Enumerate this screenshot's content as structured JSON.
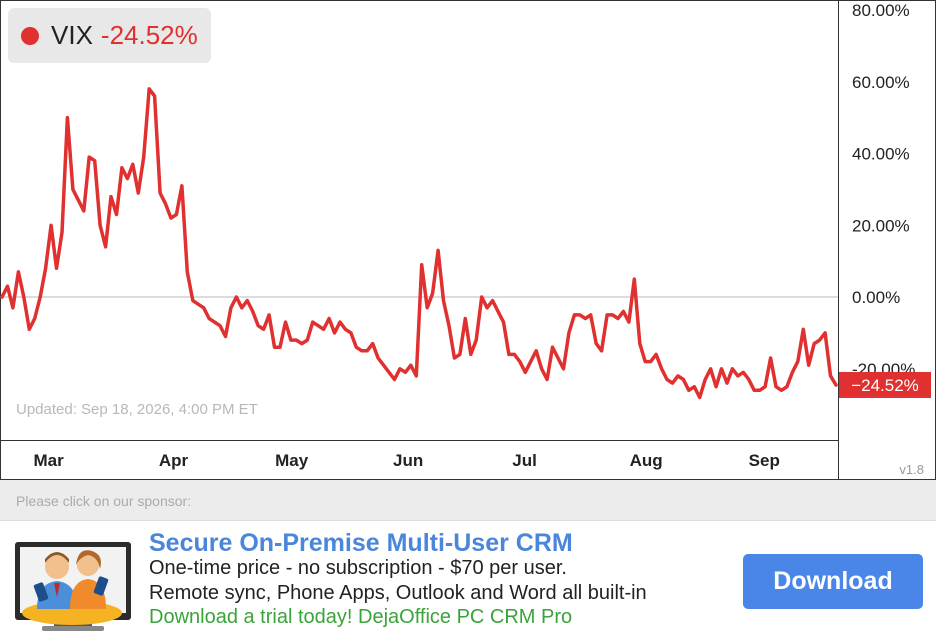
{
  "legend": {
    "symbol": "VIX",
    "change": "-24.52%",
    "color": "#e03030"
  },
  "updated": "Updated: Sep 18, 2026, 4:00 PM ET",
  "version": "v1.8",
  "last_value_label": "−24.52%",
  "sponsor": {
    "label": "Please click on our sponsor:",
    "title": "Secure On-Premise Multi-User CRM",
    "line1": "One-time price - no subscription - $70 per user.",
    "line2": "Remote sync, Phone Apps, Outlook and Word all built-in",
    "line3": "Download a trial today! DejaOffice PC CRM Pro",
    "button": "Download",
    "image_icon": "crm-people-phones-icon"
  },
  "chart_data": {
    "type": "line",
    "series": [
      {
        "name": "VIX",
        "color": "#e03030",
        "values": [
          0,
          3,
          -3,
          7,
          0,
          -9,
          -6,
          0,
          8,
          20,
          8,
          18,
          50,
          30,
          27,
          24,
          39,
          38,
          20,
          14,
          28,
          23,
          36,
          33,
          37,
          29,
          39,
          58,
          56,
          29,
          26,
          22,
          23,
          31,
          7,
          -1,
          -2,
          -3,
          -6,
          -7,
          -8,
          -11,
          -3,
          0,
          -3,
          -1,
          -4,
          -8,
          -9,
          -5,
          -14,
          -14,
          -7,
          -12,
          -12,
          -13,
          -12,
          -7,
          -8,
          -9,
          -6,
          -10,
          -7,
          -9,
          -10,
          -14,
          -15,
          -15,
          -13,
          -17,
          -19,
          -21,
          -23,
          -20,
          -21,
          -19,
          -22,
          9,
          -3,
          1,
          13,
          -1,
          -8,
          -17,
          -16,
          -6,
          -16,
          -12,
          0,
          -3,
          -1,
          -4,
          -7,
          -16,
          -16,
          -18,
          -21,
          -18,
          -15,
          -20,
          -23,
          -14,
          -17,
          -20,
          -10,
          -5,
          -5,
          -6,
          -5,
          -13,
          -15,
          -5,
          -5,
          -6,
          -4,
          -7,
          5,
          -13,
          -18,
          -18,
          -16,
          -20,
          -23,
          -24,
          -22,
          -23,
          -26,
          -25,
          -28,
          -23,
          -20,
          -25,
          -20,
          -24,
          -20,
          -22,
          -21,
          -23,
          -26,
          -26,
          -25,
          -17,
          -25,
          -26,
          -25,
          -21,
          -18,
          -9,
          -19,
          -13,
          -12,
          -10,
          -22,
          -24.52
        ]
      }
    ],
    "x_labels": [
      "Mar",
      "Apr",
      "May",
      "Jun",
      "Jul",
      "Aug",
      "Sep"
    ],
    "x_label_positions": [
      0.058,
      0.207,
      0.348,
      0.487,
      0.626,
      0.771,
      0.912
    ],
    "y_ticks": [
      80,
      60,
      40,
      20,
      0,
      -20
    ],
    "y_tick_labels": [
      "80.00%",
      "60.00%",
      "40.00%",
      "20.00%",
      "0.00%",
      "-20.00%"
    ],
    "ylim": [
      -40,
      80
    ],
    "baseline": 0,
    "last_value": -24.52
  }
}
